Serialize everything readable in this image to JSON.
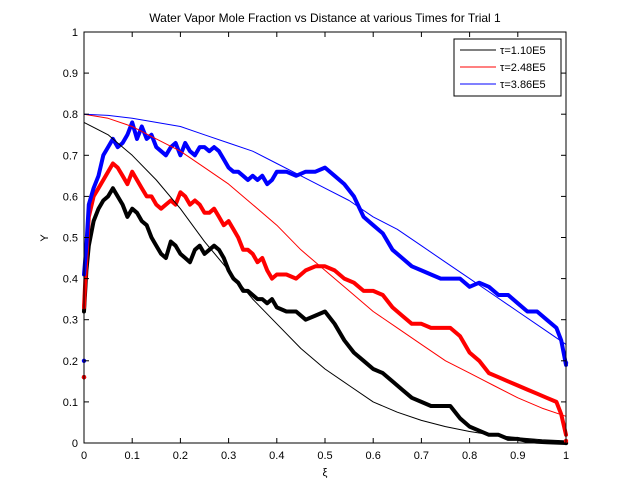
{
  "chart_data": {
    "type": "line",
    "title": "Water Vapor Mole Fraction vs Distance at various Times for Trial 1",
    "xlabel": "ξ",
    "ylabel": "Y",
    "xlim": [
      0,
      1
    ],
    "ylim": [
      0,
      1
    ],
    "xticks": [
      0,
      0.1,
      0.2,
      0.3,
      0.4,
      0.5,
      0.6,
      0.7,
      0.8,
      0.9,
      1
    ],
    "xtick_labels": [
      "0",
      "0.1",
      "0.2",
      "0.3",
      "0.4",
      "0.5",
      "0.6",
      "0.7",
      "0.8",
      "0.9",
      "1"
    ],
    "yticks": [
      0,
      0.1,
      0.2,
      0.3,
      0.4,
      0.5,
      0.6,
      0.7,
      0.8,
      0.9,
      1
    ],
    "ytick_labels": [
      "0",
      "0.1",
      "0.2",
      "0.3",
      "0.4",
      "0.5",
      "0.6",
      "0.7",
      "0.8",
      "0.9",
      "1"
    ],
    "grid": false,
    "legend_position": "top-right",
    "series": [
      {
        "name": "τ=1.10E5",
        "color": "#000000",
        "kind": "experimental",
        "x": [
          0,
          0.005,
          0.01,
          0.02,
          0.03,
          0.04,
          0.05,
          0.06,
          0.07,
          0.08,
          0.09,
          0.1,
          0.11,
          0.12,
          0.13,
          0.14,
          0.15,
          0.16,
          0.17,
          0.18,
          0.19,
          0.2,
          0.21,
          0.22,
          0.23,
          0.24,
          0.25,
          0.26,
          0.27,
          0.28,
          0.29,
          0.3,
          0.31,
          0.32,
          0.33,
          0.34,
          0.35,
          0.36,
          0.37,
          0.38,
          0.39,
          0.4,
          0.42,
          0.44,
          0.46,
          0.48,
          0.5,
          0.52,
          0.54,
          0.56,
          0.58,
          0.6,
          0.62,
          0.64,
          0.66,
          0.68,
          0.7,
          0.72,
          0.74,
          0.76,
          0.78,
          0.8,
          0.82,
          0.84,
          0.86,
          0.88,
          0.9,
          0.92,
          0.94,
          0.96,
          0.98,
          1
        ],
        "y": [
          0.32,
          0.42,
          0.48,
          0.54,
          0.57,
          0.59,
          0.6,
          0.62,
          0.6,
          0.58,
          0.55,
          0.57,
          0.56,
          0.54,
          0.53,
          0.5,
          0.48,
          0.46,
          0.45,
          0.49,
          0.48,
          0.46,
          0.45,
          0.44,
          0.47,
          0.48,
          0.46,
          0.47,
          0.48,
          0.47,
          0.45,
          0.42,
          0.4,
          0.39,
          0.37,
          0.37,
          0.36,
          0.35,
          0.35,
          0.34,
          0.35,
          0.33,
          0.32,
          0.32,
          0.3,
          0.31,
          0.32,
          0.29,
          0.25,
          0.22,
          0.2,
          0.18,
          0.17,
          0.15,
          0.13,
          0.11,
          0.1,
          0.09,
          0.09,
          0.09,
          0.06,
          0.04,
          0.03,
          0.02,
          0.02,
          0.01,
          0.01,
          0.005,
          0.003,
          0.002,
          0.001,
          0
        ]
      },
      {
        "name": "τ=2.48E5",
        "color": "#ff0000",
        "kind": "experimental",
        "x": [
          0,
          0.005,
          0.01,
          0.02,
          0.03,
          0.04,
          0.05,
          0.06,
          0.07,
          0.08,
          0.09,
          0.1,
          0.11,
          0.12,
          0.13,
          0.14,
          0.15,
          0.16,
          0.17,
          0.18,
          0.19,
          0.2,
          0.21,
          0.22,
          0.23,
          0.24,
          0.25,
          0.26,
          0.27,
          0.28,
          0.29,
          0.3,
          0.31,
          0.32,
          0.33,
          0.34,
          0.35,
          0.36,
          0.37,
          0.38,
          0.39,
          0.4,
          0.42,
          0.44,
          0.46,
          0.48,
          0.5,
          0.52,
          0.54,
          0.56,
          0.58,
          0.6,
          0.62,
          0.64,
          0.66,
          0.68,
          0.7,
          0.72,
          0.74,
          0.76,
          0.78,
          0.8,
          0.82,
          0.84,
          0.86,
          0.88,
          0.9,
          0.92,
          0.94,
          0.96,
          0.98,
          0.99,
          1
        ],
        "y": [
          0.33,
          0.45,
          0.55,
          0.6,
          0.62,
          0.64,
          0.66,
          0.68,
          0.67,
          0.65,
          0.63,
          0.66,
          0.64,
          0.62,
          0.6,
          0.6,
          0.58,
          0.57,
          0.58,
          0.59,
          0.58,
          0.61,
          0.6,
          0.58,
          0.59,
          0.58,
          0.56,
          0.56,
          0.57,
          0.55,
          0.53,
          0.54,
          0.52,
          0.5,
          0.47,
          0.47,
          0.46,
          0.44,
          0.45,
          0.42,
          0.4,
          0.41,
          0.41,
          0.4,
          0.42,
          0.43,
          0.43,
          0.42,
          0.4,
          0.39,
          0.37,
          0.37,
          0.36,
          0.33,
          0.31,
          0.29,
          0.29,
          0.28,
          0.28,
          0.28,
          0.26,
          0.22,
          0.2,
          0.17,
          0.16,
          0.15,
          0.14,
          0.13,
          0.12,
          0.11,
          0.1,
          0.07,
          0.02
        ]
      },
      {
        "name": "τ=3.86E5",
        "color": "#0000ff",
        "kind": "experimental",
        "x": [
          0,
          0.005,
          0.01,
          0.02,
          0.03,
          0.04,
          0.05,
          0.06,
          0.07,
          0.08,
          0.09,
          0.1,
          0.11,
          0.12,
          0.13,
          0.14,
          0.15,
          0.16,
          0.17,
          0.18,
          0.19,
          0.2,
          0.21,
          0.22,
          0.23,
          0.24,
          0.25,
          0.26,
          0.27,
          0.28,
          0.29,
          0.3,
          0.31,
          0.32,
          0.33,
          0.34,
          0.35,
          0.36,
          0.37,
          0.38,
          0.39,
          0.4,
          0.42,
          0.44,
          0.46,
          0.48,
          0.5,
          0.52,
          0.54,
          0.56,
          0.58,
          0.6,
          0.62,
          0.64,
          0.66,
          0.68,
          0.7,
          0.72,
          0.74,
          0.76,
          0.78,
          0.8,
          0.82,
          0.84,
          0.86,
          0.88,
          0.9,
          0.92,
          0.94,
          0.96,
          0.98,
          0.99,
          1
        ],
        "y": [
          0.41,
          0.48,
          0.58,
          0.62,
          0.65,
          0.7,
          0.72,
          0.74,
          0.72,
          0.73,
          0.75,
          0.78,
          0.74,
          0.77,
          0.74,
          0.75,
          0.72,
          0.71,
          0.7,
          0.72,
          0.73,
          0.7,
          0.73,
          0.71,
          0.7,
          0.72,
          0.72,
          0.71,
          0.72,
          0.71,
          0.69,
          0.67,
          0.66,
          0.66,
          0.65,
          0.64,
          0.65,
          0.64,
          0.65,
          0.63,
          0.64,
          0.66,
          0.66,
          0.65,
          0.66,
          0.66,
          0.67,
          0.65,
          0.63,
          0.6,
          0.55,
          0.53,
          0.51,
          0.47,
          0.45,
          0.43,
          0.42,
          0.41,
          0.4,
          0.4,
          0.4,
          0.38,
          0.39,
          0.38,
          0.36,
          0.36,
          0.34,
          0.32,
          0.32,
          0.3,
          0.28,
          0.25,
          0.19
        ]
      },
      {
        "name": "τ=1.10E5 model",
        "color": "#000000",
        "kind": "model",
        "x": [
          0,
          0.05,
          0.1,
          0.15,
          0.2,
          0.25,
          0.3,
          0.35,
          0.4,
          0.45,
          0.5,
          0.55,
          0.6,
          0.65,
          0.7,
          0.75,
          0.8,
          0.85,
          0.9,
          0.95,
          1
        ],
        "y": [
          0.78,
          0.75,
          0.7,
          0.64,
          0.57,
          0.49,
          0.42,
          0.35,
          0.29,
          0.23,
          0.18,
          0.14,
          0.1,
          0.075,
          0.055,
          0.04,
          0.028,
          0.019,
          0.013,
          0.008,
          0.005
        ]
      },
      {
        "name": "τ=2.48E5 model",
        "color": "#ff0000",
        "kind": "model",
        "x": [
          0,
          0.05,
          0.1,
          0.15,
          0.2,
          0.25,
          0.3,
          0.35,
          0.4,
          0.45,
          0.5,
          0.55,
          0.6,
          0.65,
          0.7,
          0.75,
          0.8,
          0.85,
          0.9,
          0.95,
          1
        ],
        "y": [
          0.8,
          0.79,
          0.77,
          0.74,
          0.71,
          0.67,
          0.63,
          0.58,
          0.53,
          0.47,
          0.42,
          0.37,
          0.32,
          0.28,
          0.24,
          0.2,
          0.17,
          0.14,
          0.11,
          0.085,
          0.065
        ]
      },
      {
        "name": "τ=3.86E5 model",
        "color": "#0000ff",
        "kind": "model",
        "x": [
          0,
          0.05,
          0.1,
          0.15,
          0.2,
          0.25,
          0.3,
          0.35,
          0.4,
          0.45,
          0.5,
          0.55,
          0.6,
          0.65,
          0.7,
          0.75,
          0.8,
          0.85,
          0.9,
          0.95,
          1
        ],
        "y": [
          0.8,
          0.797,
          0.79,
          0.78,
          0.77,
          0.75,
          0.73,
          0.71,
          0.68,
          0.65,
          0.62,
          0.59,
          0.55,
          0.52,
          0.48,
          0.44,
          0.4,
          0.36,
          0.32,
          0.28,
          0.24
        ]
      }
    ],
    "outliers": [
      {
        "x": 0,
        "y": 0.16,
        "color": "#000000"
      },
      {
        "x": 0,
        "y": 0.16,
        "color": "#ff0000"
      },
      {
        "x": 0,
        "y": 0.2,
        "color": "#0000ff"
      },
      {
        "x": 1,
        "y": 0,
        "color": "#000000"
      },
      {
        "x": 1,
        "y": 0.005,
        "color": "#ff0000"
      },
      {
        "x": 1,
        "y": 0.195,
        "color": "#0000ff"
      }
    ],
    "legend": [
      {
        "label": "τ=1.10E5",
        "color": "#000000"
      },
      {
        "label": "τ=2.48E5",
        "color": "#ff0000"
      },
      {
        "label": "τ=3.86E5",
        "color": "#0000ff"
      }
    ]
  }
}
